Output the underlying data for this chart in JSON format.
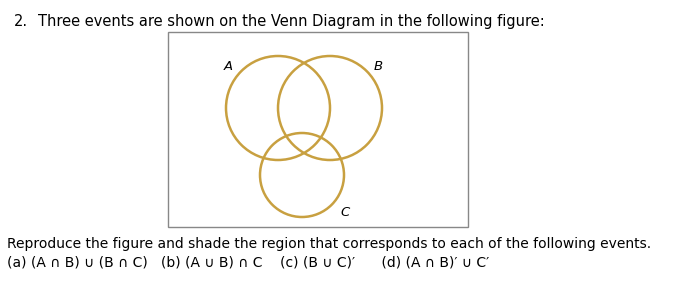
{
  "title_number": "2.",
  "title_text": "Three events are shown on the Venn Diagram in the following figure:",
  "circle_color": "#c8a040",
  "circle_lw": 1.8,
  "bg_color": "#ffffff",
  "text_color": "#000000",
  "footer_text1": "Reproduce the figure and shade the region that corresponds to each of the following events.",
  "footer_text2": "(a) (A ∩ B) ∪ (B ∩ C)   (b) (A ∪ B) ∩ C    (c) (B ∪ C)′      (d) (A ∩ B)′ ∪ C′"
}
